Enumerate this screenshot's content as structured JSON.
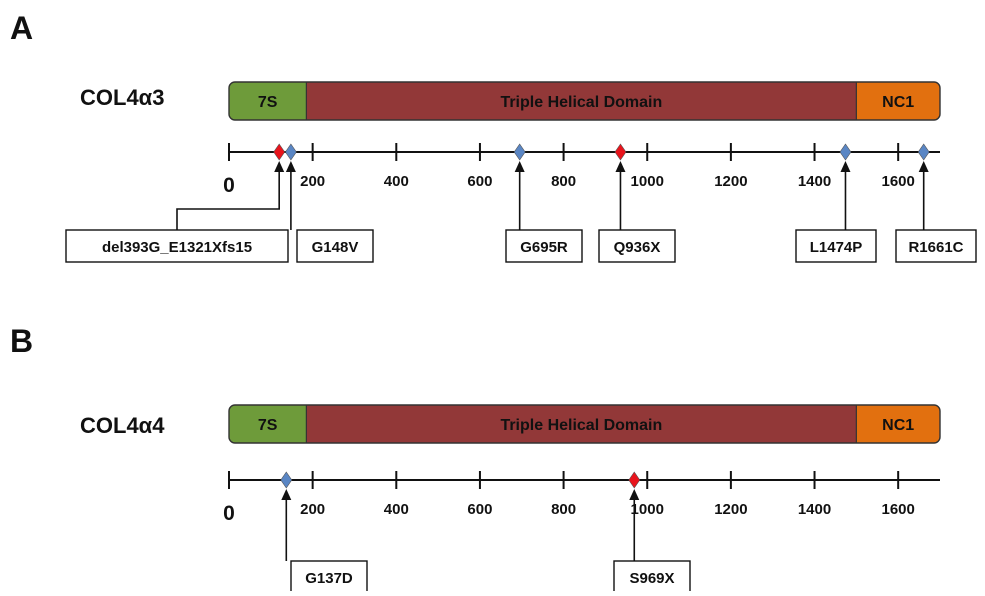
{
  "colors": {
    "domain_7S": "#6e9b3a",
    "domain_triple": "#923838",
    "domain_nc1": "#e2700f",
    "marker_red": "#e8141c",
    "marker_blue": "#5a86c4"
  },
  "axis": {
    "min": 0,
    "max": 1700,
    "zero_label": "0",
    "ticks": [
      200,
      400,
      600,
      800,
      1000,
      1200,
      1400,
      1600
    ],
    "tick_labels": [
      "200",
      "400",
      "600",
      "800",
      "1000",
      "1200",
      "1400",
      "1600"
    ]
  },
  "panels": [
    {
      "letter": "A",
      "protein": "COL4α3",
      "domains": [
        {
          "label": "7S",
          "start": 0,
          "end": 185,
          "color_key": "domain_7S"
        },
        {
          "label": "Triple Helical Domain",
          "start": 185,
          "end": 1500,
          "color_key": "domain_triple"
        },
        {
          "label": "NC1",
          "start": 1500,
          "end": 1700,
          "color_key": "domain_nc1"
        }
      ],
      "mutations": [
        {
          "label": "del393G_E1321Xfs15",
          "pos": 120,
          "color": "red"
        },
        {
          "label": "G148V",
          "pos": 148,
          "color": "blue"
        },
        {
          "label": "G695R",
          "pos": 695,
          "color": "blue"
        },
        {
          "label": "Q936X",
          "pos": 936,
          "color": "red"
        },
        {
          "label": "L1474P",
          "pos": 1474,
          "color": "blue"
        },
        {
          "label": "R1661C",
          "pos": 1661,
          "color": "blue"
        }
      ]
    },
    {
      "letter": "B",
      "protein": "COL4α4",
      "domains": [
        {
          "label": "7S",
          "start": 0,
          "end": 185,
          "color_key": "domain_7S"
        },
        {
          "label": "Triple Helical Domain",
          "start": 185,
          "end": 1500,
          "color_key": "domain_triple"
        },
        {
          "label": "NC1",
          "start": 1500,
          "end": 1700,
          "color_key": "domain_nc1"
        }
      ],
      "mutations": [
        {
          "label": "G137D",
          "pos": 137,
          "color": "blue"
        },
        {
          "label": "S969X",
          "pos": 969,
          "color": "red"
        }
      ]
    }
  ]
}
